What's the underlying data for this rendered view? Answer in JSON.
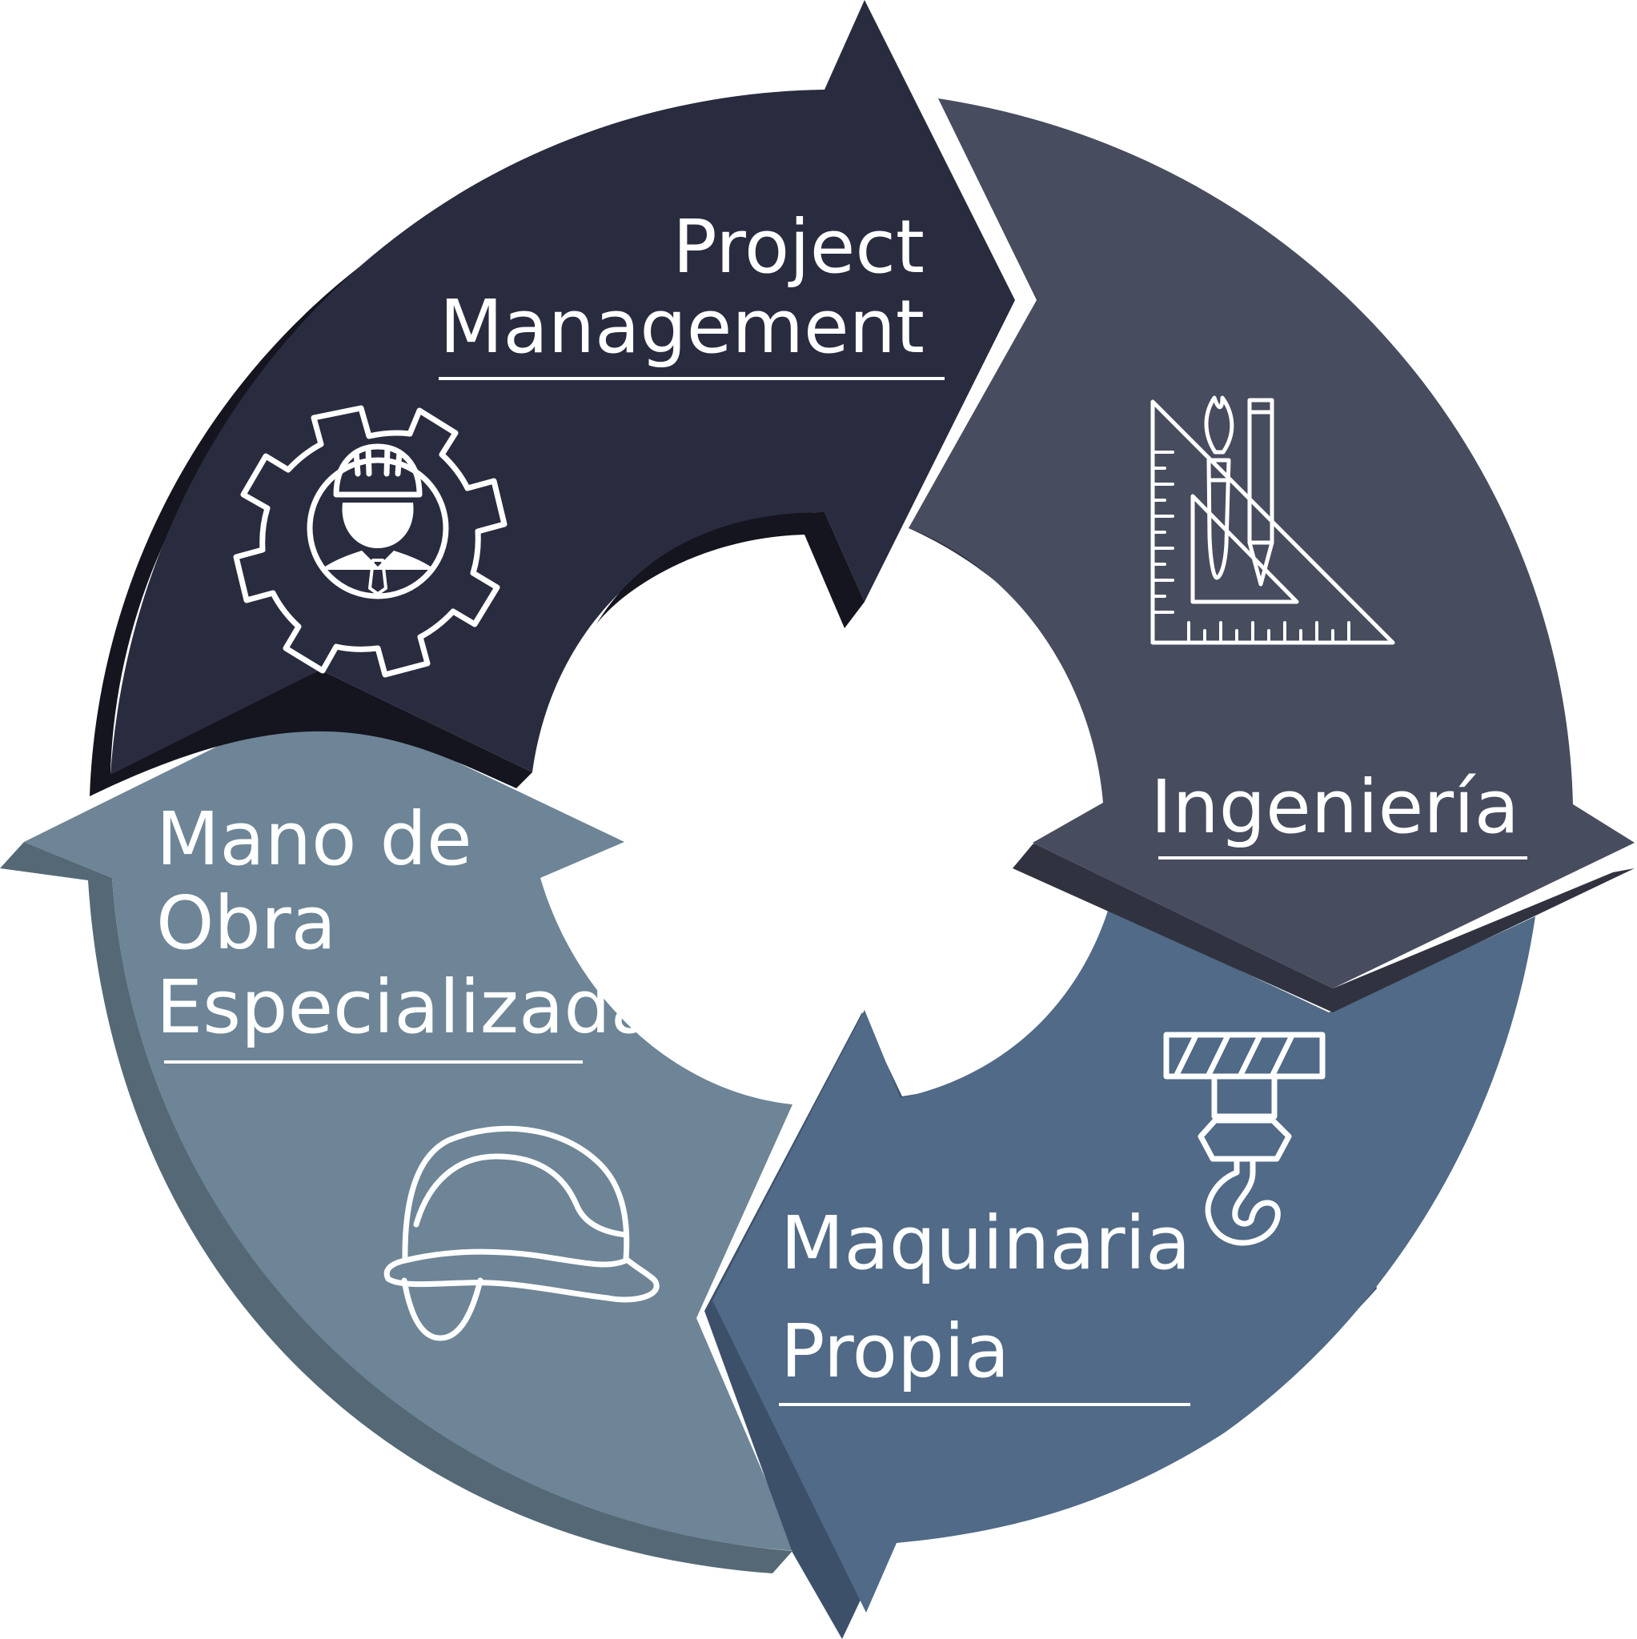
{
  "segments": [
    {
      "id": "project-management",
      "label_lines": [
        "Project",
        "Management"
      ],
      "icon": "engineer-gear-icon",
      "color": "#292c3f",
      "shade": "#15151f"
    },
    {
      "id": "ingenieria",
      "label_lines": [
        "Ingeniería"
      ],
      "icon": "drafting-tools-icon",
      "color": "#474c5e",
      "shade": "#30333f"
    },
    {
      "id": "maquinaria-propia",
      "label_lines": [
        "Maquinaria",
        "Propia"
      ],
      "icon": "crane-hook-icon",
      "color": "#506a87",
      "shade": "#3c5069"
    },
    {
      "id": "mano-de-obra",
      "label_lines": [
        "Mano de",
        "Obra",
        "Especializada"
      ],
      "icon": "hard-hat-icon",
      "color": "#6d8596",
      "shade": "#546975"
    }
  ],
  "colors": {
    "background": "#ffffff",
    "text": "#ffffff"
  }
}
